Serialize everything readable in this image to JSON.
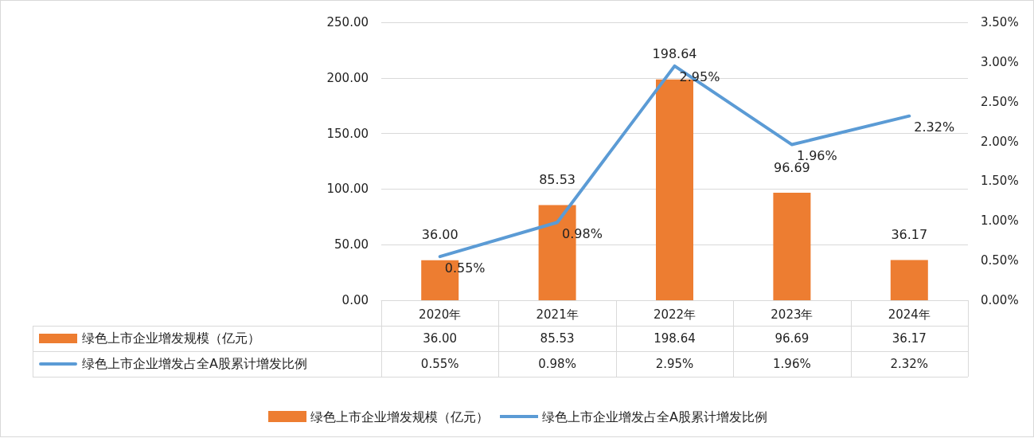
{
  "chart_data": {
    "type": "bar",
    "categories": [
      "2020年",
      "2021年",
      "2022年",
      "2023年",
      "2024年"
    ],
    "series": [
      {
        "name": "绿色上市企业增发规模（亿元）",
        "color": "#ed7d31",
        "values": [
          36.0,
          85.53,
          198.64,
          96.69,
          36.17
        ],
        "value_labels": [
          "36.00",
          "85.53",
          "198.64",
          "96.69",
          "36.17"
        ]
      },
      {
        "name": "绿色上市企业增发占全A股累计增发比例",
        "type": "line",
        "axis": "y2",
        "color": "#5b9bd5",
        "values": [
          0.55,
          0.98,
          2.95,
          1.96,
          2.32
        ],
        "value_labels": [
          "0.55%",
          "0.98%",
          "2.95%",
          "1.96%",
          "2.32%"
        ]
      }
    ],
    "ylim": [
      0,
      250
    ],
    "yticks": [
      {
        "value": 0,
        "label": "0.00"
      },
      {
        "value": 50,
        "label": "50.00"
      },
      {
        "value": 100,
        "label": "100.00"
      },
      {
        "value": 150,
        "label": "150.00"
      },
      {
        "value": 200,
        "label": "200.00"
      },
      {
        "value": 250,
        "label": "250.00"
      }
    ],
    "y2lim": [
      0,
      3.5
    ],
    "y2ticks": [
      {
        "value": 0,
        "label": "0.00%"
      },
      {
        "value": 0.5,
        "label": "0.50%"
      },
      {
        "value": 1,
        "label": "1.00%"
      },
      {
        "value": 1.5,
        "label": "1.50%"
      },
      {
        "value": 2,
        "label": "2.00%"
      },
      {
        "value": 2.5,
        "label": "2.50%"
      },
      {
        "value": 3,
        "label": "3.00%"
      },
      {
        "value": 3.5,
        "label": "3.50%"
      }
    ],
    "grid": "y",
    "legend": "bottom",
    "marker": "none",
    "line_style": "solid"
  }
}
